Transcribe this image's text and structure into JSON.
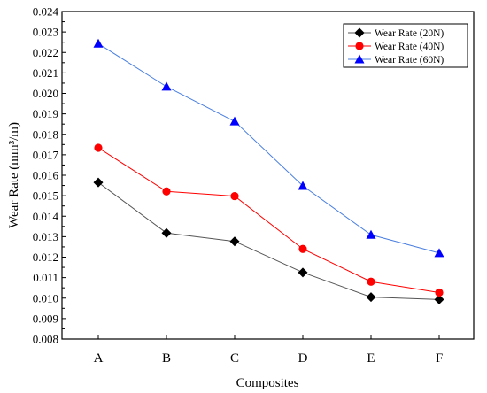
{
  "chart_data": {
    "type": "line",
    "title": "",
    "xlabel": "Composites",
    "ylabel": "Wear Rate (mm³/m)",
    "categories": [
      "A",
      "B",
      "C",
      "D",
      "E",
      "F"
    ],
    "ylim": [
      0.008,
      0.024
    ],
    "yticks": [
      "0.008",
      "0.009",
      "0.010",
      "0.011",
      "0.012",
      "0.013",
      "0.014",
      "0.015",
      "0.016",
      "0.017",
      "0.018",
      "0.019",
      "0.020",
      "0.021",
      "0.022",
      "0.023",
      "0.024"
    ],
    "grid": false,
    "legend_position": "top-right",
    "series": [
      {
        "name": "Wear Rate (20N)",
        "color": "#000000",
        "marker": "diamond",
        "line_color": "#555555",
        "values": [
          0.01565,
          0.01318,
          0.01277,
          0.01125,
          0.01005,
          0.00993
        ]
      },
      {
        "name": "Wear Rate (40N)",
        "color": "#ff0000",
        "marker": "circle",
        "line_color": "#ff0000",
        "values": [
          0.01734,
          0.01521,
          0.01498,
          0.0124,
          0.0108,
          0.01027
        ]
      },
      {
        "name": "Wear Rate (60N)",
        "color": "#0000ff",
        "marker": "triangle",
        "line_color": "#4a7fe0",
        "values": [
          0.02243,
          0.02033,
          0.01863,
          0.01548,
          0.01309,
          0.0122
        ]
      }
    ]
  }
}
